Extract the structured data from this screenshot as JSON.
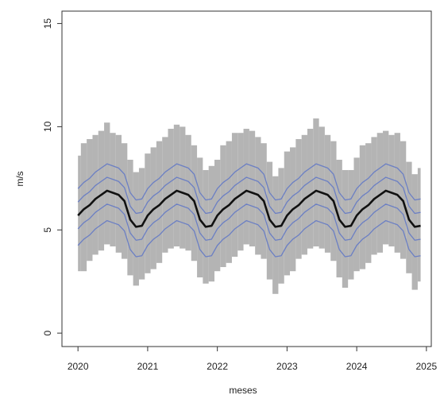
{
  "chart_data": {
    "type": "line",
    "x_label": "meses",
    "y_label": "m/s",
    "xlim": [
      2019.77,
      2025.07
    ],
    "ylim": [
      -0.65,
      15.6
    ],
    "xticks": [
      2020,
      2021,
      2022,
      2023,
      2024,
      2025
    ],
    "yticks": [
      0,
      5,
      10,
      15
    ],
    "x": [
      2020,
      2020.083,
      2020.167,
      2020.25,
      2020.333,
      2020.417,
      2020.5,
      2020.583,
      2020.667,
      2020.75,
      2020.833,
      2020.917,
      2021,
      2021.083,
      2021.167,
      2021.25,
      2021.333,
      2021.417,
      2021.5,
      2021.583,
      2021.667,
      2021.75,
      2021.833,
      2021.917,
      2022,
      2022.083,
      2022.167,
      2022.25,
      2022.333,
      2022.417,
      2022.5,
      2022.583,
      2022.667,
      2022.75,
      2022.833,
      2022.917,
      2023,
      2023.083,
      2023.167,
      2023.25,
      2023.333,
      2023.417,
      2023.5,
      2023.583,
      2023.667,
      2023.75,
      2023.833,
      2023.917,
      2024,
      2024.083,
      2024.167,
      2024.25,
      2024.333,
      2024.417,
      2024.5,
      2024.583,
      2024.667,
      2024.75,
      2024.833,
      2024.917
    ],
    "band": {
      "color": "#b4b4b4",
      "upper": [
        8.6,
        9.2,
        9.4,
        9.6,
        9.8,
        10.2,
        9.7,
        9.6,
        9.2,
        8.4,
        7.8,
        8.0,
        8.7,
        9.0,
        9.3,
        9.5,
        9.9,
        10.1,
        10.0,
        9.6,
        9.1,
        8.5,
        7.9,
        8.1,
        8.4,
        9.1,
        9.3,
        9.7,
        9.7,
        9.9,
        9.8,
        9.5,
        9.2,
        8.3,
        7.6,
        8.0,
        8.8,
        9.0,
        9.4,
        9.6,
        9.9,
        10.4,
        10.0,
        9.6,
        9.3,
        8.4,
        7.9,
        7.9,
        8.5,
        9.1,
        9.2,
        9.5,
        9.7,
        9.8,
        9.6,
        9.7,
        9.3,
        8.3,
        7.7,
        8.0
      ],
      "lower": [
        3.0,
        3.0,
        3.5,
        3.8,
        4.0,
        4.3,
        4.2,
        3.9,
        3.6,
        2.8,
        2.3,
        2.6,
        2.9,
        3.1,
        3.4,
        3.9,
        4.1,
        4.2,
        4.1,
        4.0,
        3.5,
        2.7,
        2.4,
        2.5,
        3.0,
        3.2,
        3.4,
        3.7,
        4.0,
        4.3,
        4.2,
        3.8,
        3.6,
        2.6,
        1.9,
        2.4,
        2.8,
        3.0,
        3.6,
        3.8,
        4.1,
        4.2,
        4.1,
        3.9,
        3.5,
        2.7,
        2.2,
        2.6,
        3.0,
        3.1,
        3.4,
        3.8,
        3.9,
        4.3,
        4.2,
        3.9,
        3.6,
        2.9,
        2.1,
        2.5
      ]
    },
    "series": [
      {
        "color": "#6b7fc4",
        "values": [
          7.0,
          7.3,
          7.5,
          7.8,
          8.0,
          8.2,
          8.1,
          8.0,
          7.7,
          6.8,
          6.45,
          6.5,
          7.0,
          7.3,
          7.5,
          7.8,
          8.0,
          8.2,
          8.1,
          8.0,
          7.7,
          6.8,
          6.45,
          6.5,
          7.0,
          7.3,
          7.5,
          7.8,
          8.0,
          8.2,
          8.1,
          8.0,
          7.7,
          6.8,
          6.45,
          6.5,
          7.0,
          7.3,
          7.5,
          7.8,
          8.0,
          8.2,
          8.1,
          8.0,
          7.7,
          6.8,
          6.45,
          6.5,
          7.0,
          7.3,
          7.5,
          7.8,
          8.0,
          8.2,
          8.1,
          8.0,
          7.7,
          6.8,
          6.45,
          6.5
        ]
      },
      {
        "color": "#6b7fc4",
        "values": [
          6.35,
          6.65,
          6.85,
          7.15,
          7.35,
          7.55,
          7.45,
          7.35,
          7.05,
          6.15,
          5.8,
          5.85,
          6.35,
          6.65,
          6.85,
          7.15,
          7.35,
          7.55,
          7.45,
          7.35,
          7.05,
          6.15,
          5.8,
          5.85,
          6.35,
          6.65,
          6.85,
          7.15,
          7.35,
          7.55,
          7.45,
          7.35,
          7.05,
          6.15,
          5.8,
          5.85,
          6.35,
          6.65,
          6.85,
          7.15,
          7.35,
          7.55,
          7.45,
          7.35,
          7.05,
          6.15,
          5.8,
          5.85,
          6.35,
          6.65,
          6.85,
          7.15,
          7.35,
          7.55,
          7.45,
          7.35,
          7.05,
          6.15,
          5.8,
          5.85
        ]
      },
      {
        "color": "#6b7fc4",
        "values": [
          5.05,
          5.35,
          5.55,
          5.85,
          6.05,
          6.25,
          6.15,
          6.05,
          5.75,
          4.85,
          4.5,
          4.55,
          5.05,
          5.35,
          5.55,
          5.85,
          6.05,
          6.25,
          6.15,
          6.05,
          5.75,
          4.85,
          4.5,
          4.55,
          5.05,
          5.35,
          5.55,
          5.85,
          6.05,
          6.25,
          6.15,
          6.05,
          5.75,
          4.85,
          4.5,
          4.55,
          5.05,
          5.35,
          5.55,
          5.85,
          6.05,
          6.25,
          6.15,
          6.05,
          5.75,
          4.85,
          4.5,
          4.55,
          5.05,
          5.35,
          5.55,
          5.85,
          6.05,
          6.25,
          6.15,
          6.05,
          5.75,
          4.85,
          4.5,
          4.55
        ]
      },
      {
        "color": "#6b7fc4",
        "values": [
          4.25,
          4.55,
          4.75,
          5.05,
          5.25,
          5.45,
          5.35,
          5.25,
          4.95,
          4.05,
          3.7,
          3.75,
          4.25,
          4.55,
          4.75,
          5.05,
          5.25,
          5.45,
          5.35,
          5.25,
          4.95,
          4.05,
          3.7,
          3.75,
          4.25,
          4.55,
          4.75,
          5.05,
          5.25,
          5.45,
          5.35,
          5.25,
          4.95,
          4.05,
          3.7,
          3.75,
          4.25,
          4.55,
          4.75,
          5.05,
          5.25,
          5.45,
          5.35,
          5.25,
          4.95,
          4.05,
          3.7,
          3.75,
          4.25,
          4.55,
          4.75,
          5.05,
          5.25,
          5.45,
          5.35,
          5.25,
          4.95,
          4.05,
          3.7,
          3.75
        ]
      },
      {
        "color": "#111111",
        "values": [
          5.7,
          6.0,
          6.2,
          6.5,
          6.7,
          6.9,
          6.8,
          6.7,
          6.4,
          5.5,
          5.15,
          5.2,
          5.7,
          6.0,
          6.2,
          6.5,
          6.7,
          6.9,
          6.8,
          6.7,
          6.4,
          5.5,
          5.15,
          5.2,
          5.7,
          6.0,
          6.2,
          6.5,
          6.7,
          6.9,
          6.8,
          6.7,
          6.4,
          5.5,
          5.15,
          5.2,
          5.7,
          6.0,
          6.2,
          6.5,
          6.7,
          6.9,
          6.8,
          6.7,
          6.4,
          5.5,
          5.15,
          5.2,
          5.7,
          6.0,
          6.2,
          6.5,
          6.7,
          6.9,
          6.8,
          6.7,
          6.4,
          5.5,
          5.15,
          5.2
        ]
      }
    ]
  }
}
